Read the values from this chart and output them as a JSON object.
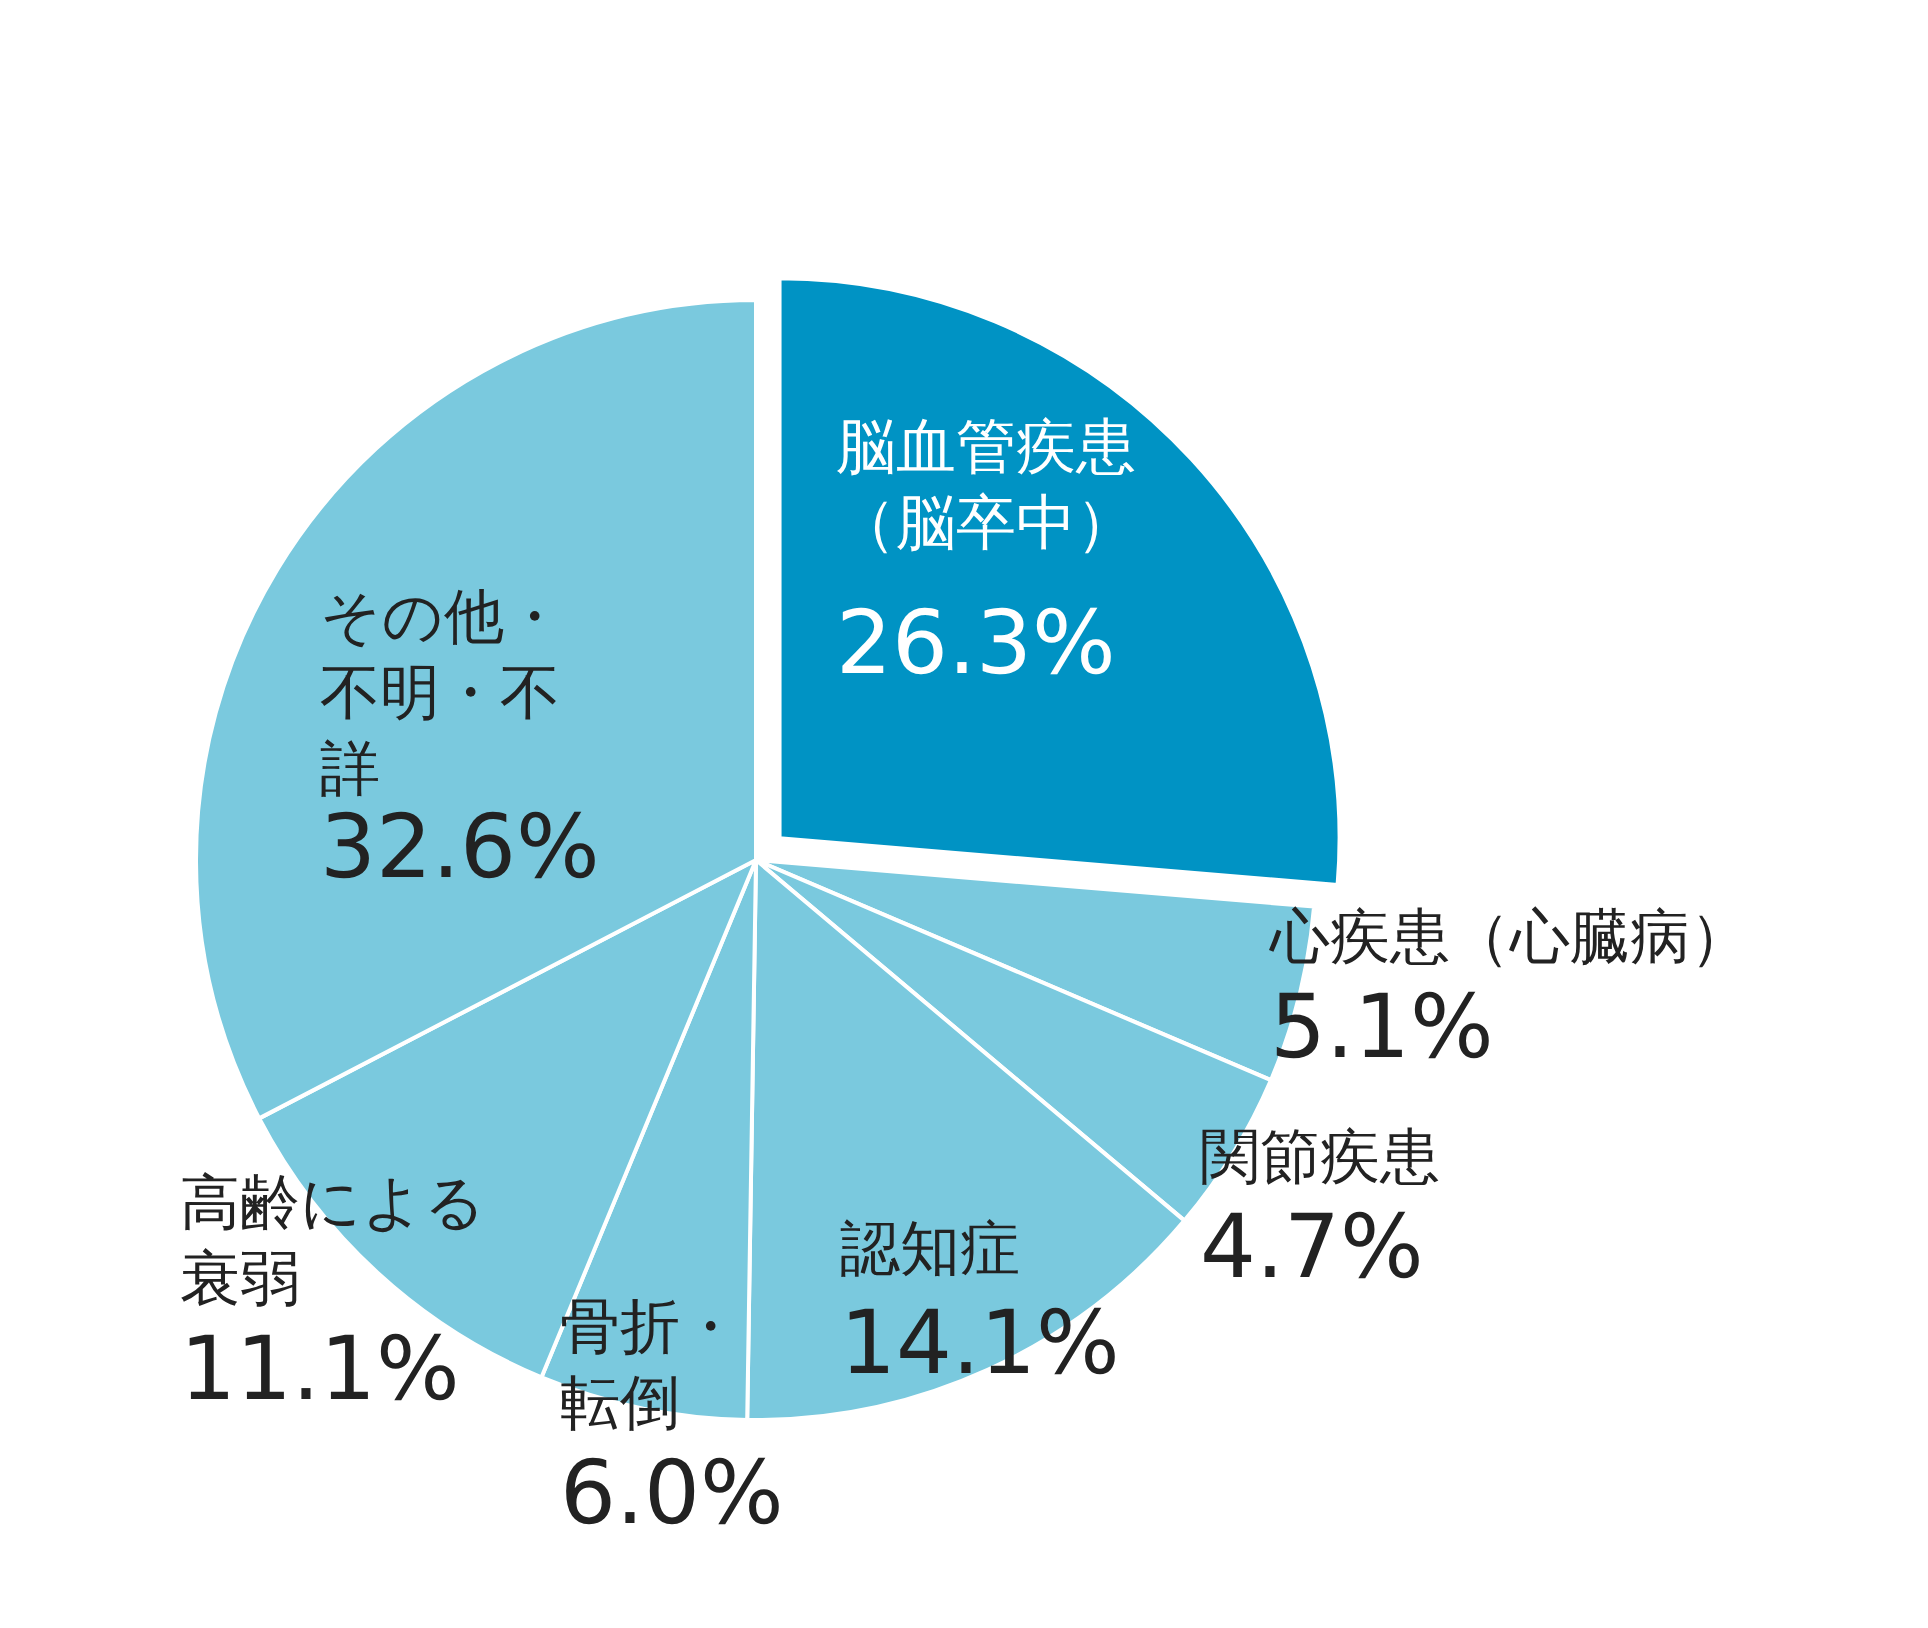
{
  "chart_data": {
    "type": "pie",
    "categories": [
      "脳血管疾患（脳卒中）",
      "心疾患（心臓病）",
      "関節疾患",
      "認知症",
      "骨折・転倒",
      "高齢による衰弱",
      "その他・不明・不詳"
    ],
    "values": [
      26.3,
      5.1,
      4.7,
      14.1,
      6.0,
      11.1,
      32.6
    ],
    "value_labels": [
      "26.3%",
      "5.1%",
      "4.7%",
      "14.1%",
      "6.0%",
      "11.1%",
      "32.6%"
    ],
    "colors": [
      "#0093c4",
      "#7ac9de",
      "#7ac9de",
      "#7ac9de",
      "#7ac9de",
      "#7ac9de",
      "#7ac9de"
    ],
    "legend": false
  }
}
